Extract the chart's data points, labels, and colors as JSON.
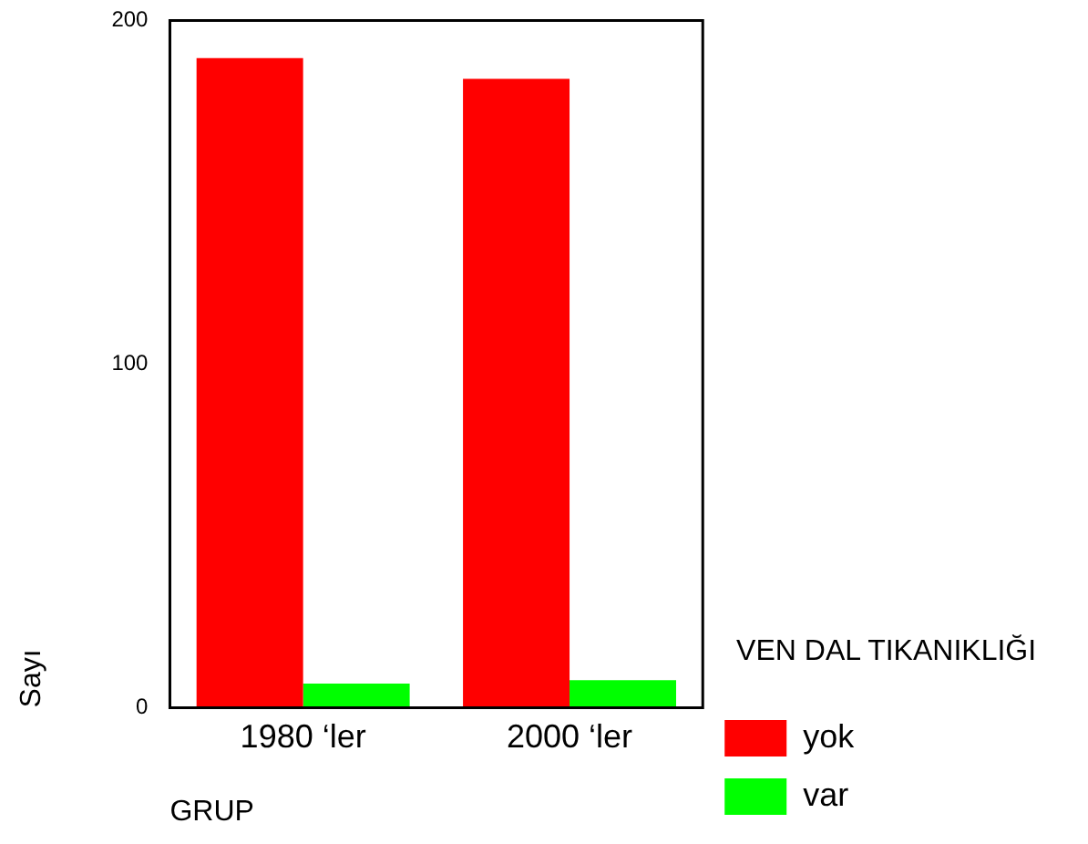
{
  "chart_data": {
    "type": "bar",
    "xlabel": "GRUP",
    "ylabel": "Sayı",
    "legend_title": "VEN DAL TIKANIKLIĞI",
    "categories": [
      "1980 ‘ler",
      "2000 ‘ler"
    ],
    "series": [
      {
        "name": "yok",
        "color": "#ff0000",
        "values": [
          189,
          183
        ]
      },
      {
        "name": "var",
        "color": "#00ff00",
        "values": [
          7,
          8
        ]
      }
    ],
    "ylim": [
      0,
      200
    ],
    "yticks": [
      0,
      100,
      200
    ],
    "grid": false,
    "legend": "right"
  }
}
